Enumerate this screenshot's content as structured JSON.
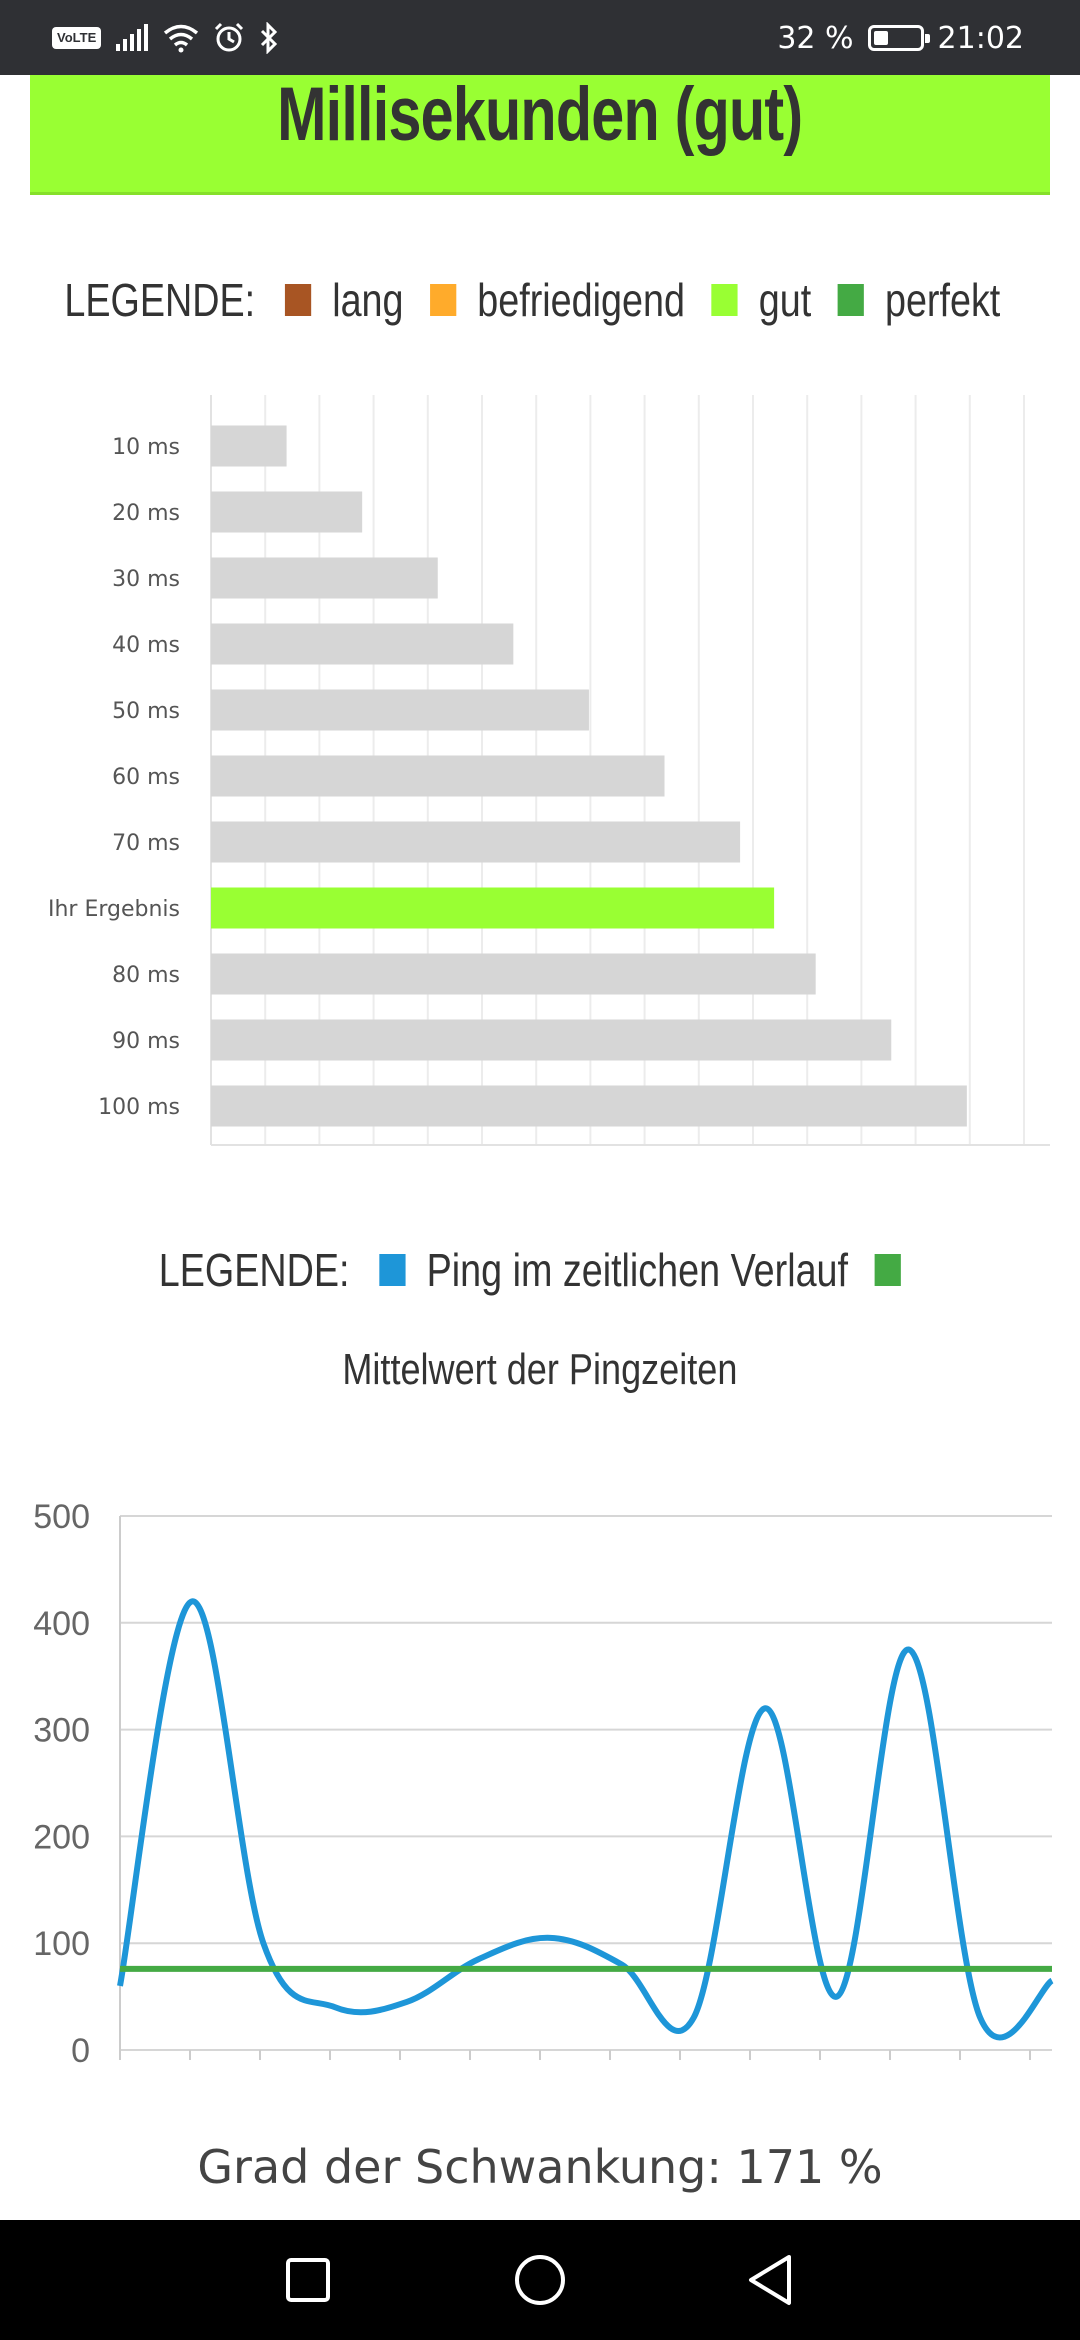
{
  "status_bar": {
    "volte": "VoLTE",
    "battery_text": "32 %",
    "battery_level": 0.32,
    "time": "21:02",
    "icons": [
      "volte-icon",
      "signal-icon",
      "wifi-icon",
      "alarm-icon",
      "bluetooth-icon",
      "battery-icon"
    ]
  },
  "banner": {
    "title": "Millisekunden (gut)",
    "color": "#99ff33"
  },
  "legend1": {
    "title": "LEGENDE:",
    "items": [
      {
        "label": "lang",
        "color": "#a85523"
      },
      {
        "label": "befriedigend",
        "color": "#ffab2b"
      },
      {
        "label": "gut",
        "color": "#99ff33"
      },
      {
        "label": "perfekt",
        "color": "#44aa44"
      }
    ]
  },
  "legend2": {
    "title": "LEGENDE:",
    "items": [
      {
        "label": "Ping im zeitlichen Verlauf",
        "color": "#1e96d8"
      },
      {
        "label": "",
        "color": "#44aa44"
      }
    ]
  },
  "line_title": "Mittelwert der Pingzeiten",
  "fluctuation": "Grad der Schwankung: 171 %",
  "chart_data": [
    {
      "type": "bar",
      "orientation": "horizontal",
      "categories": [
        "10 ms",
        "20 ms",
        "30 ms",
        "40 ms",
        "50 ms",
        "60 ms",
        "70 ms",
        "Ihr Ergebnis",
        "80 ms",
        "90 ms",
        "100 ms"
      ],
      "values": [
        10,
        20,
        30,
        40,
        50,
        60,
        70,
        74.5,
        80,
        90,
        100
      ],
      "colors": [
        "#d6d6d6",
        "#d6d6d6",
        "#d6d6d6",
        "#d6d6d6",
        "#d6d6d6",
        "#d6d6d6",
        "#d6d6d6",
        "#99ff33",
        "#d6d6d6",
        "#d6d6d6",
        "#d6d6d6"
      ],
      "xlim": [
        0,
        111
      ],
      "grid": true
    },
    {
      "type": "line",
      "x": [
        0,
        1,
        2,
        3,
        4,
        5,
        6,
        7,
        8,
        9,
        10,
        11,
        12,
        13
      ],
      "series": [
        {
          "name": "Ping im zeitlichen Verlauf",
          "color": "#1e96d8",
          "values": [
            60,
            420,
            100,
            40,
            45,
            85,
            105,
            80,
            30,
            320,
            50,
            375,
            30,
            65
          ]
        },
        {
          "color": "#44aa44",
          "values": [
            76,
            76,
            76,
            76,
            76,
            76,
            76,
            76,
            76,
            76,
            76,
            76,
            76,
            76
          ]
        }
      ],
      "ylim": [
        0,
        500
      ],
      "yticks": [
        "0",
        "100",
        "200",
        "300",
        "400",
        "500"
      ],
      "grid": true
    }
  ]
}
